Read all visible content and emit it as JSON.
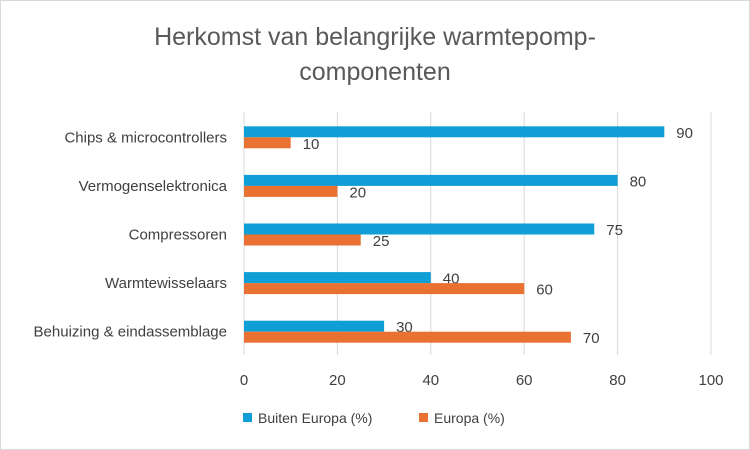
{
  "chart_data": {
    "type": "bar",
    "orientation": "horizontal",
    "title": "Herkomst van belangrijke warmtepomp-componenten",
    "title_lines": [
      "Herkomst van belangrijke warmtepomp-",
      "componenten"
    ],
    "categories": [
      "Chips & microcontrollers",
      "Vermogenselektronica",
      "Compressoren",
      "Warmtewisselaars",
      "Behuizing & eindassemblage"
    ],
    "series": [
      {
        "name": "Buiten Europa (%)",
        "values": [
          90,
          80,
          75,
          40,
          30
        ],
        "color": "#0F9ED5"
      },
      {
        "name": "Europa (%)",
        "values": [
          10,
          20,
          25,
          60,
          70
        ],
        "color": "#E97132"
      }
    ],
    "xlim": [
      0,
      100
    ],
    "xticks": [
      0,
      20,
      40,
      60,
      80,
      100
    ],
    "grid": true,
    "data_labels": true,
    "legend": "bottom"
  }
}
